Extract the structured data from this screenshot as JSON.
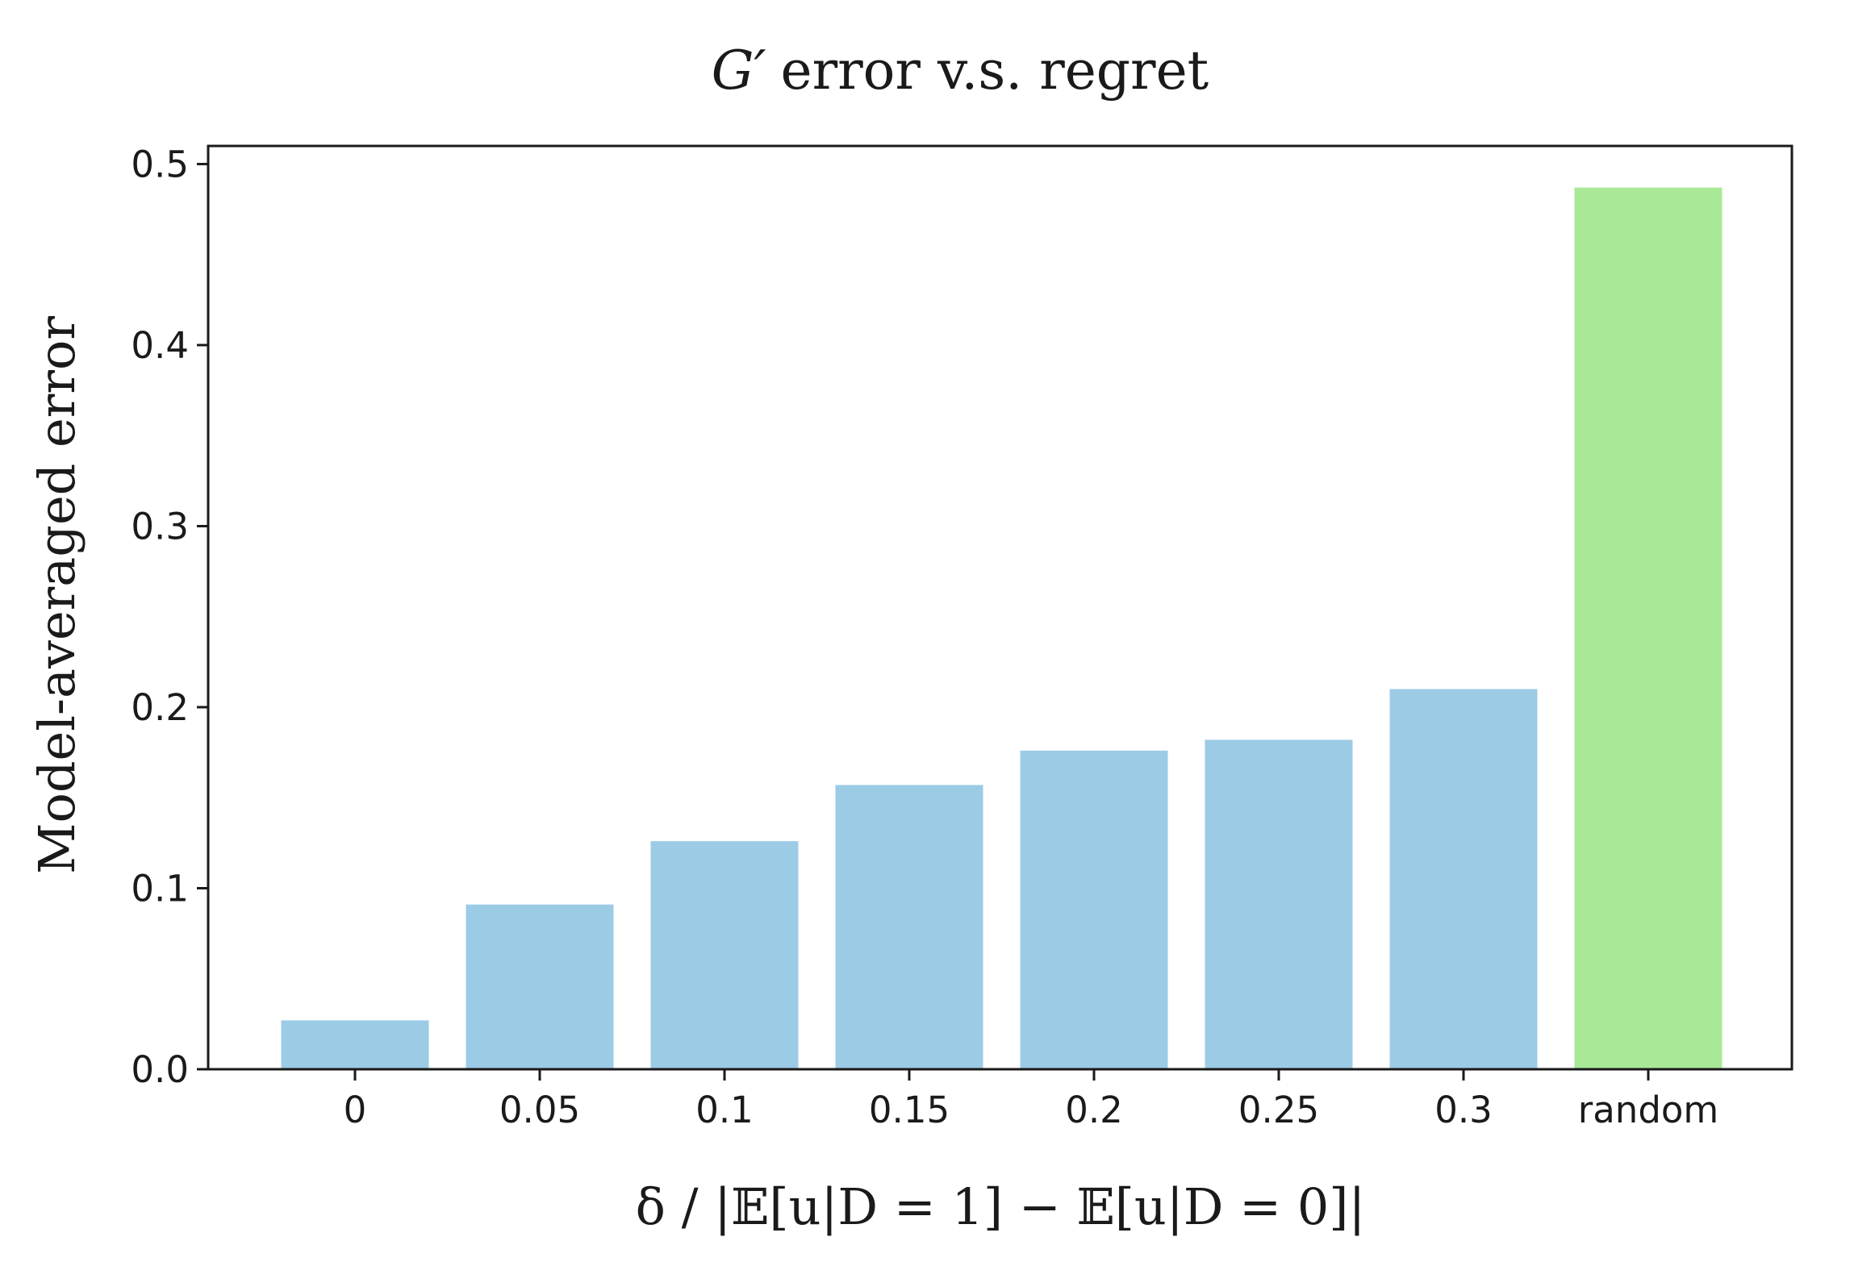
{
  "chart_data": {
    "type": "bar",
    "title": "G′ error v.s. regret",
    "title_parts": {
      "symbol": "G′",
      "rest": "error v.s. regret"
    },
    "xlabel": "δ / |𝔼[u|D = 1] − 𝔼[u|D = 0]|",
    "ylabel": "Model-averaged error",
    "categories": [
      "0",
      "0.05",
      "0.1",
      "0.15",
      "0.2",
      "0.25",
      "0.3",
      "random"
    ],
    "values": [
      0.027,
      0.091,
      0.126,
      0.157,
      0.176,
      0.182,
      0.21,
      0.487
    ],
    "colors": [
      "#9ccbe6",
      "#9ccbe6",
      "#9ccbe6",
      "#9ccbe6",
      "#9ccbe6",
      "#9ccbe6",
      "#9ccbe6",
      "#a8e897"
    ],
    "ylim": [
      0,
      0.51
    ],
    "yticks": [
      0.0,
      0.1,
      0.2,
      0.3,
      0.4,
      0.5
    ],
    "ytick_labels": [
      "0.0",
      "0.1",
      "0.2",
      "0.3",
      "0.4",
      "0.5"
    ],
    "grid": false,
    "legend": "none"
  }
}
